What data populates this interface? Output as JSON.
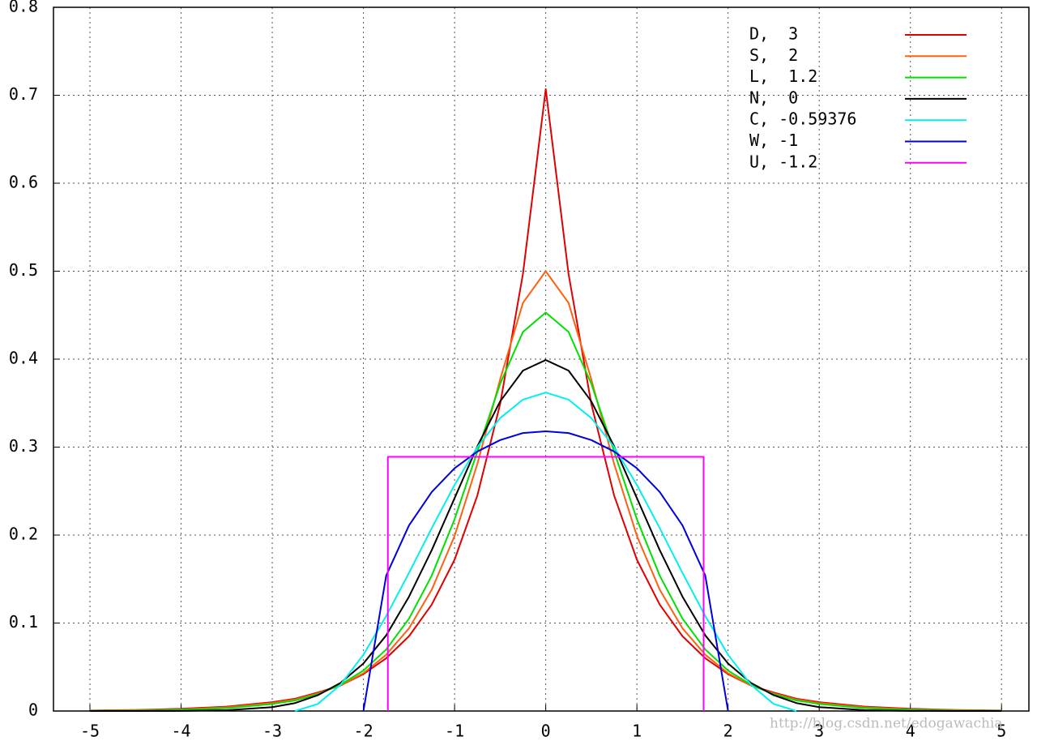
{
  "chart_data": {
    "type": "line",
    "x": [
      -5,
      -4.5,
      -4,
      -3.5,
      -3,
      -2.75,
      -2.5,
      -2.25,
      -2,
      -1.75,
      -1.5,
      -1.25,
      -1,
      -0.75,
      -0.5,
      -0.25,
      0,
      0.25,
      0.5,
      0.75,
      1,
      1.25,
      1.5,
      1.75,
      2,
      2.25,
      2.5,
      2.75,
      3,
      3.5,
      4,
      4.5,
      5
    ],
    "series": [
      {
        "name": "D,  3",
        "color": "#e00000",
        "values": [
          0.0006,
          0.0012,
          0.0025,
          0.005,
          0.01,
          0.014,
          0.021,
          0.029,
          0.042,
          0.06,
          0.085,
          0.121,
          0.172,
          0.245,
          0.349,
          0.497,
          0.707,
          0.497,
          0.349,
          0.245,
          0.172,
          0.121,
          0.085,
          0.06,
          0.042,
          0.029,
          0.021,
          0.014,
          0.01,
          0.005,
          0.0025,
          0.0012,
          0.0006
        ]
      },
      {
        "name": "S,  2",
        "color": "#ff6010",
        "values": [
          0.0004,
          0.0009,
          0.0019,
          0.0041,
          0.009,
          0.013,
          0.02,
          0.029,
          0.043,
          0.064,
          0.094,
          0.138,
          0.199,
          0.281,
          0.377,
          0.464,
          0.5,
          0.464,
          0.377,
          0.281,
          0.199,
          0.138,
          0.094,
          0.064,
          0.043,
          0.029,
          0.02,
          0.013,
          0.009,
          0.0041,
          0.0019,
          0.0009,
          0.0004
        ]
      },
      {
        "name": "L,  1.2",
        "color": "#00e000",
        "values": [
          0.0002,
          0.0005,
          0.0013,
          0.0032,
          0.008,
          0.012,
          0.019,
          0.03,
          0.046,
          0.07,
          0.105,
          0.154,
          0.218,
          0.295,
          0.372,
          0.431,
          0.453,
          0.431,
          0.372,
          0.295,
          0.218,
          0.154,
          0.105,
          0.07,
          0.046,
          0.03,
          0.019,
          0.012,
          0.008,
          0.0032,
          0.0013,
          0.0005,
          0.0002
        ]
      },
      {
        "name": "N,  0",
        "color": "#000000",
        "values": [
          0,
          0,
          0.0001,
          0.0009,
          0.0044,
          0.009,
          0.018,
          0.032,
          0.054,
          0.086,
          0.13,
          0.183,
          0.242,
          0.301,
          0.352,
          0.387,
          0.399,
          0.387,
          0.352,
          0.301,
          0.242,
          0.183,
          0.13,
          0.086,
          0.054,
          0.032,
          0.018,
          0.009,
          0.0044,
          0.0009,
          0.0001,
          0,
          0
        ]
      },
      {
        "name": "C, -0.59376",
        "color": "#00f0f0",
        "values": [
          null,
          null,
          null,
          null,
          null,
          0,
          0.008,
          0.03,
          0.064,
          0.108,
          0.157,
          0.208,
          0.257,
          0.3,
          0.333,
          0.354,
          0.362,
          0.354,
          0.333,
          0.3,
          0.257,
          0.208,
          0.157,
          0.108,
          0.064,
          0.03,
          0.008,
          0,
          null,
          null,
          null,
          null,
          null
        ]
      },
      {
        "name": "W, -1",
        "color": "#0000e0",
        "values": [
          null,
          null,
          null,
          null,
          null,
          null,
          null,
          null,
          0,
          0.154,
          0.211,
          0.249,
          0.276,
          0.295,
          0.308,
          0.316,
          0.318,
          0.316,
          0.308,
          0.295,
          0.276,
          0.249,
          0.211,
          0.154,
          0,
          null,
          null,
          null,
          null,
          null,
          null,
          null,
          null
        ]
      },
      {
        "name": "U, -1.2",
        "color": "#ff00ff",
        "x": [
          -1.732,
          -1.732,
          1.732,
          1.732
        ],
        "values": [
          0,
          0.289,
          0.289,
          0
        ]
      }
    ],
    "xlim": [
      -5.4,
      5.3
    ],
    "ylim": [
      0,
      0.8
    ],
    "xticks": [
      -5,
      -4,
      -3,
      -2,
      -1,
      0,
      1,
      2,
      3,
      4,
      5
    ],
    "yticks": [
      0,
      0.1,
      0.2,
      0.3,
      0.4,
      0.5,
      0.6,
      0.7,
      0.8
    ],
    "grid": true,
    "legend": "upper right",
    "watermark": "http://blog.csdn.net/edogawachia"
  }
}
